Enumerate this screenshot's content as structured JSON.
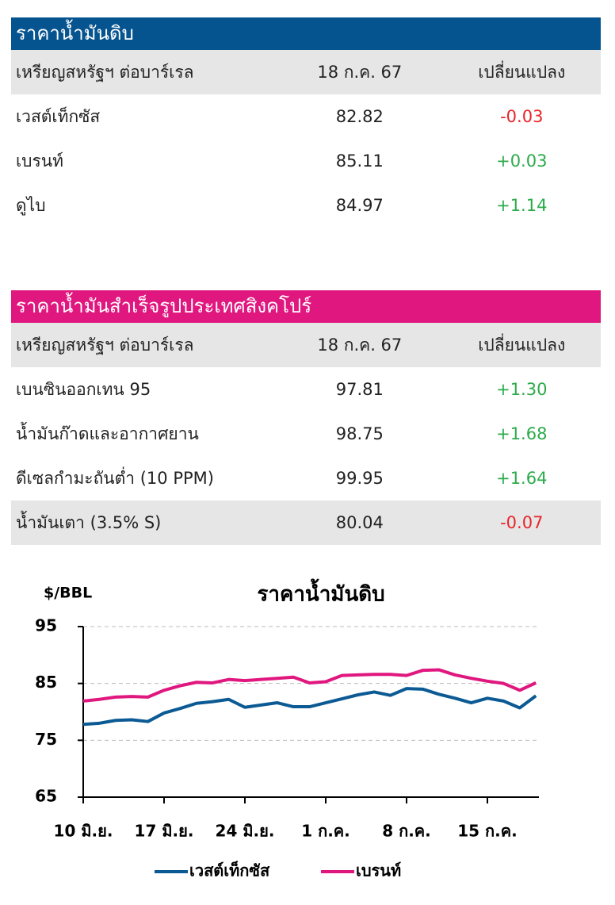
{
  "tables": [
    {
      "title": "ราคาน้ำมันดิบ",
      "header": [
        "เหรียญสหรัฐฯ ต่อบาร์เรล",
        "18 ก.ค. 67",
        "เปลี่ยนแปลง"
      ],
      "rows": [
        [
          "เวสต์เท็กซัส",
          "82.82",
          "-0.03"
        ],
        [
          "เบรนท์",
          "85.11",
          "+0.03"
        ],
        [
          "ดูไบ",
          "84.97",
          "+1.14"
        ]
      ]
    },
    {
      "title": "ราคาน้ำมันสำเร็จรูปประเทศสิงคโปร์",
      "header": [
        "เหรียญสหรัฐฯ ต่อบาร์เรล",
        "18 ก.ค. 67",
        "เปลี่ยนแปลง"
      ],
      "rows": [
        [
          "เบนซินออกเทน 95",
          "97.81",
          "+1.30"
        ],
        [
          "น้ำมันก๊าดและอากาศยาน",
          "98.75",
          "+1.68"
        ],
        [
          "ดีเซลกำมะถันต่ำ (10 PPM)",
          "99.95",
          "+1.64"
        ],
        [
          "น้ำมันเตา (3.5% S)",
          "80.04",
          "-0.07"
        ]
      ]
    }
  ],
  "chart_data": {
    "type": "line",
    "title": "ราคาน้ำมันดิบ",
    "y_label": "$/BBL",
    "categories": [
      "10 มิ.ย.",
      null,
      null,
      null,
      null,
      "17 มิ.ย.",
      null,
      null,
      null,
      null,
      "24 มิ.ย.",
      null,
      null,
      null,
      null,
      "1 ก.ค.",
      null,
      null,
      null,
      null,
      "8 ก.ค.",
      null,
      null,
      null,
      null,
      "15 ก.ค.",
      null,
      null,
      null
    ],
    "series": [
      {
        "name": "เวสต์เท็กซัส",
        "color": "#0b5a94",
        "values": [
          77.8,
          78.0,
          78.5,
          78.6,
          78.3,
          79.8,
          80.6,
          81.5,
          81.8,
          82.2,
          80.8,
          81.2,
          81.6,
          80.9,
          80.9,
          81.6,
          82.3,
          83.0,
          83.5,
          82.9,
          84.1,
          84.0,
          83.1,
          82.4,
          81.6,
          82.4,
          81.9,
          80.7,
          82.82
        ]
      },
      {
        "name": "เบรนท์",
        "color": "#e0177f",
        "values": [
          81.9,
          82.2,
          82.6,
          82.7,
          82.6,
          83.8,
          84.6,
          85.2,
          85.1,
          85.7,
          85.5,
          85.7,
          85.9,
          86.1,
          85.1,
          85.3,
          86.4,
          86.5,
          86.6,
          86.6,
          86.4,
          87.3,
          87.4,
          86.5,
          85.9,
          85.4,
          85.0,
          83.8,
          85.11
        ]
      }
    ],
    "ylim": [
      65,
      95
    ],
    "yticks": [
      65,
      75,
      85,
      95
    ],
    "grid": true
  }
}
